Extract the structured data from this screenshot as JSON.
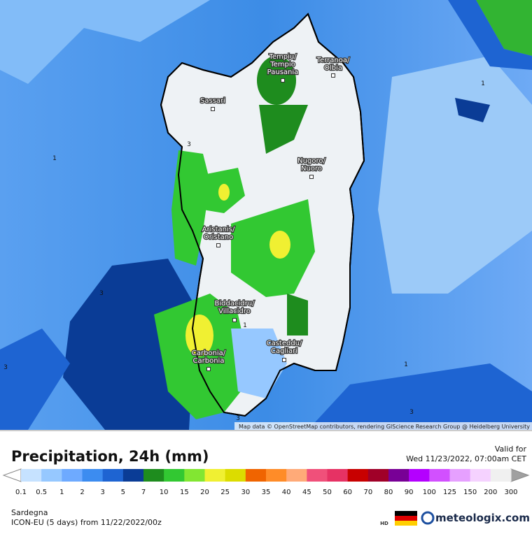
{
  "map": {
    "cities": [
      [
        "Tempiu/",
        "Tempio",
        "Pausania"
      ],
      [
        "Terranoa/",
        "Olbia"
      ],
      [
        "Sassari"
      ],
      [
        "Nugoro/",
        "Nuoro"
      ],
      [
        "Aristanis/",
        "Oristano"
      ],
      [
        "Biddacidru/",
        "Villacidro"
      ],
      [
        "Casteddu/",
        "Cagliari"
      ],
      [
        "Carbonia/",
        "Carbonia"
      ]
    ],
    "contour_labels": [
      "1",
      "1",
      "1",
      "1",
      "3",
      "3",
      "3",
      "3",
      "3"
    ],
    "attribution": "Map data © OpenStreetMap contributors, rendering GIScience Research Group @ Heidelberg University"
  },
  "legend": {
    "title": "Precipitation, 24h (mm)",
    "valid_label": "Valid for",
    "valid_time": "Wed 11/23/2022, 07:00am CET",
    "ticks": [
      "0.1",
      "0.5",
      "1",
      "2",
      "3",
      "5",
      "7",
      "10",
      "15",
      "20",
      "25",
      "30",
      "35",
      "40",
      "45",
      "50",
      "60",
      "70",
      "80",
      "90",
      "100",
      "125",
      "150",
      "200",
      "300"
    ],
    "under_color": "#ffffff",
    "colors": [
      "#c6e2ff",
      "#96c8ff",
      "#6eaaff",
      "#3c8cf0",
      "#1e64d2",
      "#0a3c96",
      "#1e8c1e",
      "#32c832",
      "#82e632",
      "#f0f032",
      "#dcdc00",
      "#f06400",
      "#ff8c28",
      "#ffaa78",
      "#f0507a",
      "#e63264",
      "#c80000",
      "#a00028",
      "#780096",
      "#b400ff",
      "#d250ff",
      "#e6a0ff",
      "#f5d2ff",
      "#f0f0f0"
    ],
    "over_color": "#a0a0a0"
  },
  "footer": {
    "region": "Sardegna",
    "model": "ICON-EU (5 days) from 11/22/2022/00z",
    "hd": "HD",
    "brand": "meteologix.com"
  }
}
